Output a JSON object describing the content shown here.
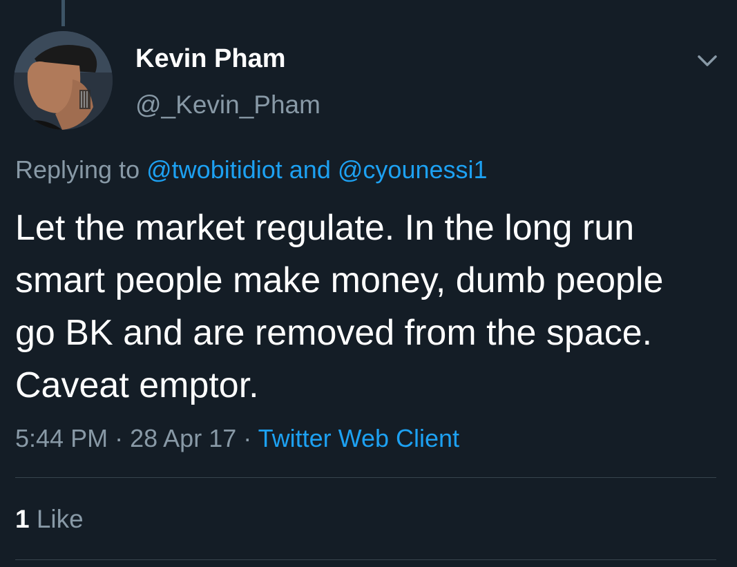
{
  "tweet": {
    "author": {
      "display_name": "Kevin Pham",
      "handle": "@_Kevin_Pham",
      "avatar_icon": "profile-photo"
    },
    "reply_to": {
      "prefix": "Replying to",
      "mention_1": "@twobitidiot",
      "connector": "and",
      "mention_2": "@cyounessi1"
    },
    "text": "Let the market regulate. In the long run smart people make money, dumb people go BK and are removed from the space. Caveat emptor.",
    "meta": {
      "time": "5:44 PM",
      "separator": "·",
      "date": "28 Apr 17",
      "client": "Twitter Web Client"
    },
    "stats": {
      "like_count": "1",
      "like_label": "Like"
    },
    "menu_icon": "chevron-down-icon"
  },
  "colors": {
    "background": "#141d26",
    "accent": "#1da1f2",
    "secondary_text": "#8899a6",
    "divider": "#38444d"
  }
}
